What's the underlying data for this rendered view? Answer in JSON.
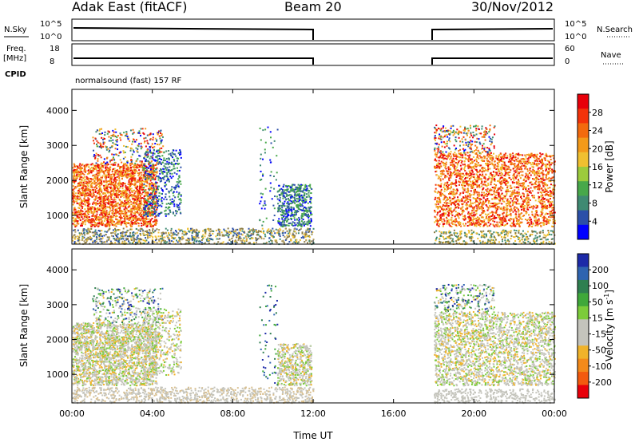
{
  "header": {
    "radar": "Adak East (fitACF)",
    "beam": "Beam 20",
    "date": "30/Nov/2012"
  },
  "params": {
    "left_label_1": "N.Sky",
    "left_label_2_line1": "Freq.",
    "left_label_2_line2": "[MHz]",
    "left_label_3": "CPID",
    "right_label_1": "N.Search",
    "right_label_2": "Nave",
    "cpid_text": "normalsound (fast) 157 RF",
    "nsky_ticks": [
      "10^5",
      "10^0"
    ],
    "nsearch_ticks": [
      "10^5",
      "10^0"
    ],
    "freq_ticks": [
      "18",
      "8"
    ],
    "nave_ticks": [
      "60",
      "0"
    ]
  },
  "chart_data": [
    {
      "type": "heatmap",
      "title": "",
      "quantity": "Power",
      "ylabel": "Slant Range [km]",
      "xlabel": "",
      "ylim": [
        180,
        4600
      ],
      "y_ticks": [
        "1000",
        "2000",
        "3000",
        "4000"
      ],
      "colorbar_label": "Power [dB]",
      "colorbar_ticks": [
        "4",
        "8",
        "12",
        "16",
        "20",
        "24",
        "28"
      ],
      "colorbar_colors": [
        "#0000ff",
        "#2b4fa8",
        "#3f8a72",
        "#48a84a",
        "#9ccb3c",
        "#f0c030",
        "#f39a1a",
        "#f36a0e",
        "#f3330a",
        "#e8000a"
      ],
      "data_gap_hours": [
        12,
        18
      ]
    },
    {
      "type": "heatmap",
      "title": "",
      "quantity": "Velocity",
      "ylabel": "Slant Range [km]",
      "xlabel": "Time UT",
      "ylim": [
        180,
        4600
      ],
      "y_ticks": [
        "1000",
        "2000",
        "3000",
        "4000"
      ],
      "x_ticks": [
        "00:00",
        "04:00",
        "08:00",
        "12:00",
        "16:00",
        "20:00",
        "00:00"
      ],
      "xlim_hours": [
        0,
        24
      ],
      "colorbar_label": "Velocity [m s",
      "colorbar_label_sup": "-1",
      "colorbar_label_end": "]",
      "colorbar_ticks": [
        "200",
        "100",
        "50",
        "15",
        "-15",
        "-50",
        "-100",
        "-200"
      ],
      "colorbar_colors": [
        "#1d2aa8",
        "#2f64b0",
        "#2f7f50",
        "#3fa83a",
        "#7ccc3a",
        "#c4c4bc",
        "#c4c4bc",
        "#f0b32a",
        "#f38a1a",
        "#f35a0e",
        "#e8000a"
      ],
      "data_gap_hours": [
        12,
        18
      ]
    }
  ]
}
